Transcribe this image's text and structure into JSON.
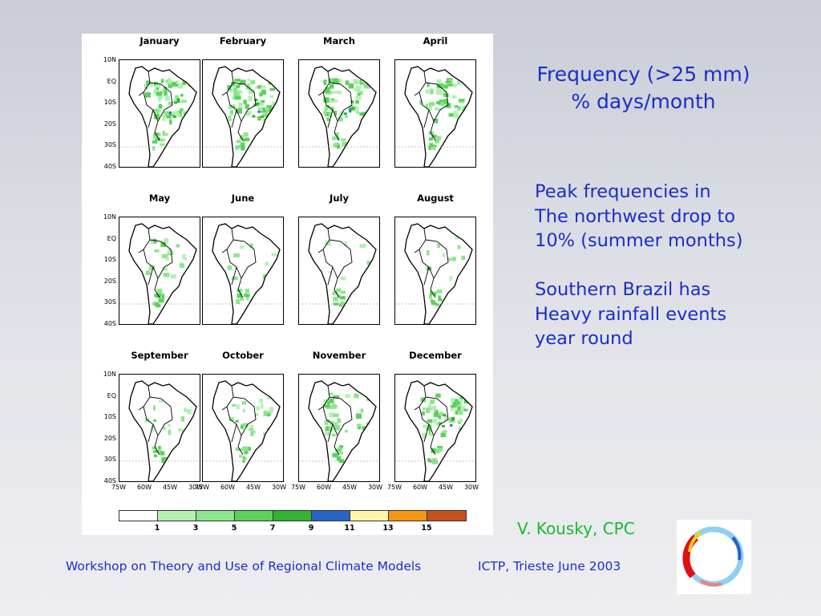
{
  "title_lines": [
    "Frequency (>25 mm)",
    "% days/month"
  ],
  "notes": {
    "para1": [
      "Peak frequencies in",
      "The northwest drop to",
      "10% (summer months)"
    ],
    "para2": [
      "Southern Brazil has",
      "Heavy rainfall events",
      "year round"
    ]
  },
  "credit": "V. Kousky, CPC",
  "footer": {
    "left": "Workshop on Theory and Use of Regional Climate Models",
    "right": "ICTP, Trieste  June 2003"
  },
  "map_figure": {
    "months": [
      "January",
      "February",
      "March",
      "April",
      "May",
      "June",
      "July",
      "August",
      "September",
      "October",
      "November",
      "December"
    ],
    "lat_labels": [
      "10N",
      "EQ",
      "10S",
      "20S",
      "30S",
      "40S"
    ],
    "lon_labels": [
      "75W",
      "60W",
      "45W",
      "30W"
    ],
    "scale": {
      "ticks": [
        "1",
        "3",
        "5",
        "7",
        "9",
        "11",
        "13",
        "15"
      ],
      "colors": [
        "#ffffff",
        "#b4f0b4",
        "#8ce68c",
        "#5ad25a",
        "#32b432",
        "#2864c8",
        "#fff5aa",
        "#f59614",
        "#c8501e"
      ]
    },
    "intensity": [
      0.9,
      0.95,
      0.95,
      0.7,
      0.35,
      0.15,
      0.12,
      0.18,
      0.2,
      0.4,
      0.65,
      0.95
    ]
  },
  "colors": {
    "title_text": "#1a2ec8",
    "credit_text": "#18b82e"
  }
}
